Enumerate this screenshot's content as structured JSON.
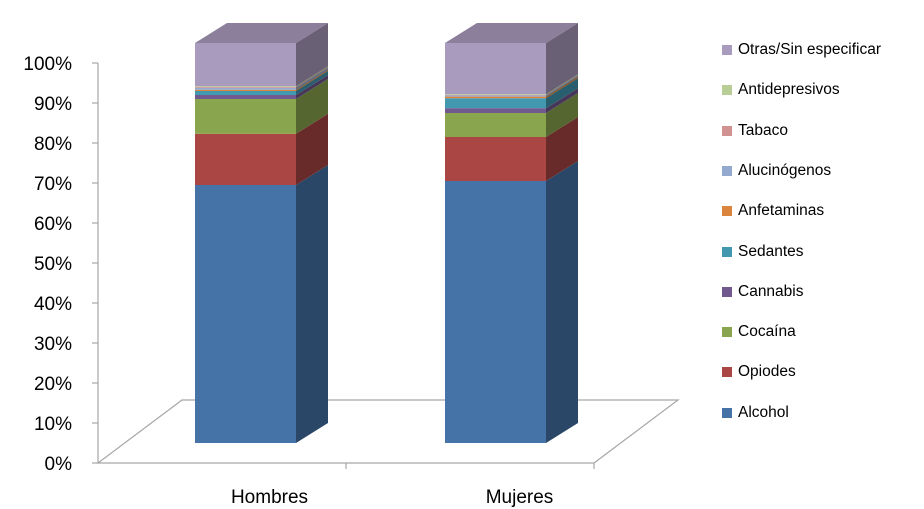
{
  "chart_data": {
    "type": "bar",
    "stacked": true,
    "three_d": true,
    "categories": [
      "Hombres",
      "Mujeres"
    ],
    "series": [
      {
        "name": "Alcohol",
        "color": "#4572A7",
        "values": [
          64.5,
          65.5
        ]
      },
      {
        "name": "Opiodes",
        "color": "#AA4643",
        "values": [
          12.8,
          11.0
        ]
      },
      {
        "name": "Cocaína",
        "color": "#89A54E",
        "values": [
          8.7,
          6.0
        ]
      },
      {
        "name": "Cannabis",
        "color": "#71588F",
        "values": [
          1.0,
          1.2
        ]
      },
      {
        "name": "Sedantes",
        "color": "#4198AF",
        "values": [
          1.0,
          2.5
        ]
      },
      {
        "name": "Anfetaminas",
        "color": "#DB843D",
        "values": [
          0.3,
          0.4
        ]
      },
      {
        "name": "Alucinógenos",
        "color": "#93A9CF",
        "values": [
          0.5,
          0.3
        ]
      },
      {
        "name": "Tabaco",
        "color": "#D19392",
        "values": [
          0.2,
          0.1
        ]
      },
      {
        "name": "Antidepresivos",
        "color": "#B9CD96",
        "values": [
          0.2,
          0.2
        ]
      },
      {
        "name": "Otras/Sin especificar",
        "color": "#A99BBD",
        "values": [
          10.8,
          12.8
        ]
      }
    ],
    "yticks": [
      "0%",
      "10%",
      "20%",
      "30%",
      "40%",
      "50%",
      "60%",
      "70%",
      "80%",
      "90%",
      "100%"
    ],
    "ylim": [
      0,
      100
    ],
    "legend_position": "right",
    "grid": false
  }
}
